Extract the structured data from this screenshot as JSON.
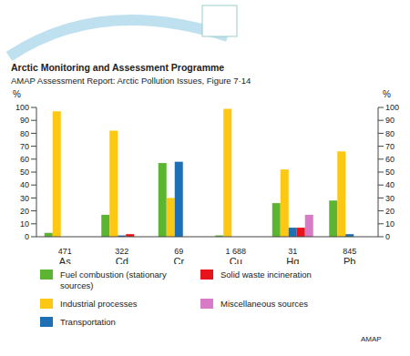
{
  "chart_data": {
    "type": "bar",
    "title": "Arctic Monitoring and Assessment Programme",
    "subtitle": "AMAP Assessment Report: Arctic Pollution Issues, Figure 7·14",
    "annotations": [
      "AMAP"
    ],
    "categories": [
      "As",
      "Cd",
      "Cr",
      "Cu",
      "Hg",
      "Pb"
    ],
    "total_labels": [
      "471",
      "322",
      "69",
      "1 688",
      "31",
      "845"
    ],
    "series": [
      {
        "name": "Fuel combustion (stationary sources)",
        "color": "#5cb531",
        "values": [
          3,
          17,
          57,
          1,
          26,
          28
        ]
      },
      {
        "name": "Industrial processes",
        "color": "#fcc814",
        "values": [
          97,
          82,
          30,
          99,
          52,
          66
        ]
      },
      {
        "name": "Transportation",
        "color": "#1f6fb5",
        "values": [
          0,
          1,
          58,
          0,
          7,
          2
        ]
      },
      {
        "name": "Solid waste incineration",
        "color": "#e8141c",
        "values": [
          0,
          2,
          0,
          0,
          7,
          0
        ]
      },
      {
        "name": "Miscellaneous sources",
        "color": "#d77bc6",
        "values": [
          0,
          0,
          0,
          0,
          17,
          0
        ]
      }
    ],
    "ylabel": "%",
    "ylim": [
      0,
      100
    ],
    "yticks": [
      0,
      10,
      20,
      30,
      40,
      50,
      60,
      70,
      80,
      90,
      100
    ],
    "y2label": "%",
    "y2lim": [
      0,
      100
    ],
    "y2ticks": [
      0,
      10,
      20,
      30,
      40,
      50,
      60,
      70,
      80,
      90,
      100
    ],
    "grid": false,
    "legend": "bottom"
  }
}
